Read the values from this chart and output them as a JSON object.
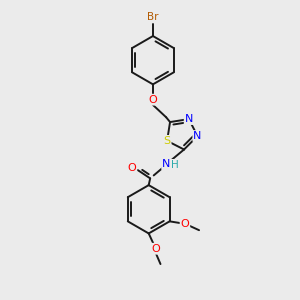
{
  "background_color": "#ebebeb",
  "bond_color": "#1a1a1a",
  "atom_colors": {
    "Br": "#b35a00",
    "O": "#ff0000",
    "S": "#cccc00",
    "N": "#0000ff",
    "H": "#2aaaaa",
    "C": "#1a1a1a"
  },
  "figsize": [
    3.0,
    3.0
  ],
  "dpi": 100
}
